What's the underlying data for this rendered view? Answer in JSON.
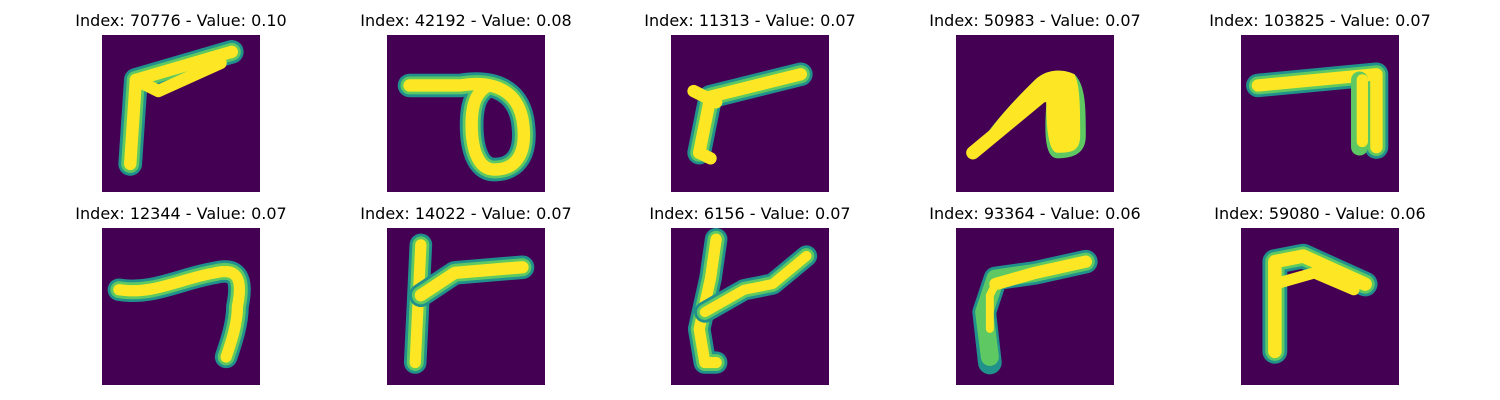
{
  "colors": {
    "background": "#440154",
    "edge": "#21918c",
    "mid": "#5ec962",
    "stroke": "#fde725"
  },
  "tiles": [
    {
      "title": "Index: 70776 - Value: 0.10"
    },
    {
      "title": "Index: 42192 - Value: 0.08"
    },
    {
      "title": "Index: 11313 - Value: 0.07"
    },
    {
      "title": "Index: 50983 - Value: 0.07"
    },
    {
      "title": "Index: 103825 - Value: 0.07"
    },
    {
      "title": "Index: 12344 - Value: 0.07"
    },
    {
      "title": "Index: 14022 - Value: 0.07"
    },
    {
      "title": "Index: 6156 - Value: 0.07"
    },
    {
      "title": "Index: 93364 - Value: 0.06"
    },
    {
      "title": "Index: 59080 - Value: 0.06"
    }
  ]
}
